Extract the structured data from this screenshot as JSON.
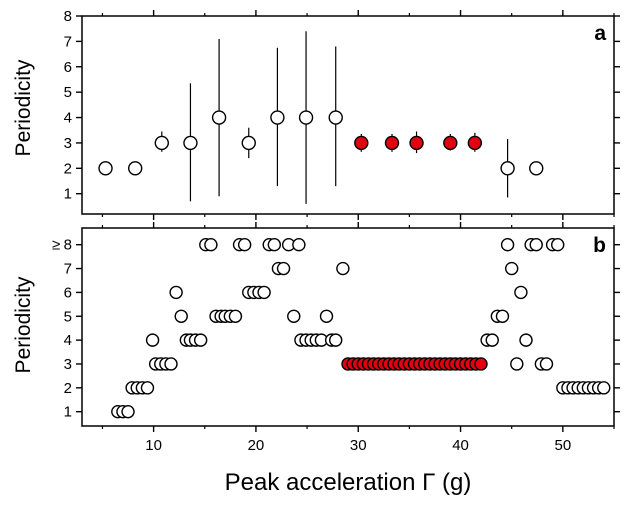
{
  "chart_data": [
    {
      "panel_label": "a",
      "type": "scatter",
      "ylabel": "Periodicity",
      "xlim": [
        3,
        55
      ],
      "ylim": [
        0.2,
        8
      ],
      "yticks": [
        1,
        2,
        3,
        4,
        5,
        6,
        7,
        8
      ],
      "series": [
        {
          "color": "#ffffff",
          "points": [
            {
              "x": 5.3,
              "y": 2,
              "err_low": 2,
              "err_high": 2
            },
            {
              "x": 8.2,
              "y": 2,
              "err_low": 2,
              "err_high": 2
            },
            {
              "x": 10.8,
              "y": 3,
              "err_low": 2.65,
              "err_high": 3.45
            },
            {
              "x": 13.6,
              "y": 3,
              "err_low": 0.7,
              "err_high": 5.35
            },
            {
              "x": 16.4,
              "y": 4,
              "err_low": 0.9,
              "err_high": 7.1
            },
            {
              "x": 19.3,
              "y": 3,
              "err_low": 2.4,
              "err_high": 3.6
            },
            {
              "x": 22.1,
              "y": 4,
              "err_low": 1.3,
              "err_high": 6.75
            },
            {
              "x": 24.9,
              "y": 4,
              "err_low": 0.6,
              "err_high": 7.4
            },
            {
              "x": 27.8,
              "y": 4,
              "err_low": 1.3,
              "err_high": 6.8
            },
            {
              "x": 44.6,
              "y": 2,
              "err_low": 0.85,
              "err_high": 3.15
            },
            {
              "x": 47.4,
              "y": 2,
              "err_low": 2,
              "err_high": 2
            }
          ]
        },
        {
          "color": "#e3000f",
          "points": [
            {
              "x": 30.3,
              "y": 3,
              "err_low": 2.65,
              "err_high": 3.35
            },
            {
              "x": 33.3,
              "y": 3,
              "err_low": 2.65,
              "err_high": 3.35
            },
            {
              "x": 35.7,
              "y": 3,
              "err_low": 2.6,
              "err_high": 3.45
            },
            {
              "x": 39.0,
              "y": 3,
              "err_low": 2.7,
              "err_high": 3.35
            },
            {
              "x": 41.4,
              "y": 3,
              "err_low": 2.65,
              "err_high": 3.4
            }
          ]
        }
      ]
    },
    {
      "panel_label": "b",
      "type": "scatter",
      "ylabel": "Periodicity",
      "xlabel": "Peak acceleration Γ (g)",
      "xlim": [
        3,
        55
      ],
      "ylim": [
        0.4,
        8.7
      ],
      "yticks": [
        1,
        2,
        3,
        4,
        5,
        6,
        7,
        8
      ],
      "ytick_labels": [
        "1",
        "2",
        "3",
        "4",
        "5",
        "6",
        "7",
        "≥8"
      ],
      "xticks": [
        10,
        20,
        30,
        40,
        50
      ],
      "series": [
        {
          "color": "#ffffff",
          "points": [
            [
              6.5,
              1
            ],
            [
              7.0,
              1
            ],
            [
              7.5,
              1
            ],
            [
              7.9,
              2
            ],
            [
              8.4,
              2
            ],
            [
              8.9,
              2
            ],
            [
              9.4,
              2
            ],
            [
              9.9,
              4
            ],
            [
              10.2,
              3
            ],
            [
              10.7,
              3
            ],
            [
              11.2,
              3
            ],
            [
              11.7,
              3
            ],
            [
              12.2,
              6
            ],
            [
              12.7,
              5
            ],
            [
              13.2,
              4
            ],
            [
              13.6,
              4
            ],
            [
              14.1,
              4
            ],
            [
              14.6,
              4
            ],
            [
              15.1,
              8
            ],
            [
              15.6,
              8
            ],
            [
              16.1,
              5
            ],
            [
              16.6,
              5
            ],
            [
              17.0,
              5
            ],
            [
              17.5,
              5
            ],
            [
              18.0,
              5
            ],
            [
              18.4,
              8
            ],
            [
              18.9,
              8
            ],
            [
              19.3,
              6
            ],
            [
              19.8,
              6
            ],
            [
              20.3,
              6
            ],
            [
              20.8,
              6
            ],
            [
              21.3,
              8
            ],
            [
              21.8,
              8
            ],
            [
              22.2,
              7
            ],
            [
              22.7,
              7
            ],
            [
              23.2,
              8
            ],
            [
              23.7,
              5
            ],
            [
              24.2,
              8
            ],
            [
              24.4,
              4
            ],
            [
              24.9,
              4
            ],
            [
              25.4,
              4
            ],
            [
              25.9,
              4
            ],
            [
              26.4,
              4
            ],
            [
              26.9,
              5
            ],
            [
              27.4,
              4
            ],
            [
              27.8,
              4
            ],
            [
              28.5,
              7
            ],
            [
              42.6,
              4
            ],
            [
              43.1,
              4
            ],
            [
              43.6,
              5
            ],
            [
              44.1,
              5
            ],
            [
              44.6,
              8
            ],
            [
              45.0,
              7
            ],
            [
              45.5,
              3
            ],
            [
              45.9,
              6
            ],
            [
              46.4,
              4
            ],
            [
              46.9,
              8
            ],
            [
              47.4,
              8
            ],
            [
              47.9,
              3
            ],
            [
              48.4,
              3
            ],
            [
              49.0,
              8
            ],
            [
              49.5,
              8
            ],
            [
              50.0,
              2
            ],
            [
              50.5,
              2
            ],
            [
              51.0,
              2
            ],
            [
              51.5,
              2
            ],
            [
              52.0,
              2
            ],
            [
              52.5,
              2
            ],
            [
              53.0,
              2
            ],
            [
              53.5,
              2
            ],
            [
              54.0,
              2
            ]
          ]
        },
        {
          "color": "#e3000f",
          "points": [
            [
              29.0,
              3
            ],
            [
              29.5,
              3
            ],
            [
              30.0,
              3
            ],
            [
              30.5,
              3
            ],
            [
              31.0,
              3
            ],
            [
              31.5,
              3
            ],
            [
              32.0,
              3
            ],
            [
              32.5,
              3
            ],
            [
              33.0,
              3
            ],
            [
              33.5,
              3
            ],
            [
              34.0,
              3
            ],
            [
              34.5,
              3
            ],
            [
              35.0,
              3
            ],
            [
              35.5,
              3
            ],
            [
              36.0,
              3
            ],
            [
              36.5,
              3
            ],
            [
              37.0,
              3
            ],
            [
              37.5,
              3
            ],
            [
              38.0,
              3
            ],
            [
              38.5,
              3
            ],
            [
              39.0,
              3
            ],
            [
              39.5,
              3
            ],
            [
              40.0,
              3
            ],
            [
              40.5,
              3
            ],
            [
              41.0,
              3
            ],
            [
              41.5,
              3
            ],
            [
              42.0,
              3
            ]
          ]
        }
      ]
    }
  ]
}
